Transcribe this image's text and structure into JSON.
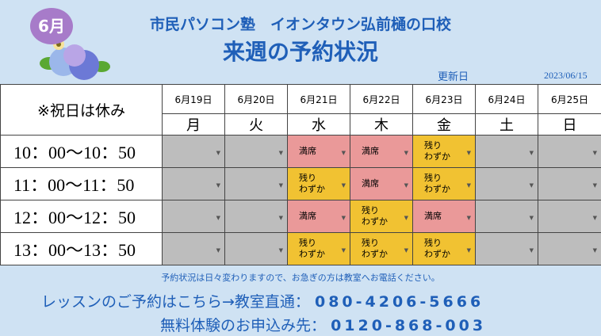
{
  "header": {
    "month_badge": "6月",
    "school_name": "市民パソコン塾　イオンタウン弘前樋の口校",
    "title": "来週の予約状況",
    "updated_label": "更新日",
    "updated_date": "2023/06/15"
  },
  "table": {
    "note": "※祝日は休み",
    "dates": [
      "6月19日",
      "6月20日",
      "6月21日",
      "6月22日",
      "6月23日",
      "6月24日",
      "6月25日"
    ],
    "weekdays": [
      "月",
      "火",
      "水",
      "木",
      "金",
      "土",
      "日"
    ],
    "rows": [
      {
        "time": "10：00〜10：50",
        "cells": [
          "",
          "",
          "満席",
          "満席",
          "残り\nわずか",
          "",
          ""
        ]
      },
      {
        "time": "11：00〜11：50",
        "cells": [
          "",
          "",
          "残り\nわずか",
          "満席",
          "残り\nわずか",
          "",
          ""
        ]
      },
      {
        "time": "12：00〜12：50",
        "cells": [
          "",
          "",
          "満席",
          "残り\nわずか",
          "満席",
          "",
          ""
        ]
      },
      {
        "time": "13：00〜13：50",
        "cells": [
          "",
          "",
          "残り\nわずか",
          "残り\nわずか",
          "残り\nわずか",
          "",
          ""
        ]
      }
    ]
  },
  "footer": {
    "note": "予約状況は日々変わりますので、お急ぎの方は教室へお電話ください。",
    "lesson_label": "レッスンのご予約はこちら→教室直通：",
    "lesson_phone": "080-4206-5666",
    "trial_label": "無料体験のお申込み先：",
    "trial_phone": "0120-868-003"
  },
  "colors": {
    "accent": "#1f5fb8",
    "full": "#ea9999",
    "few": "#f1c232",
    "closed": "#bdbdbd",
    "badge": "#a77bc9"
  }
}
